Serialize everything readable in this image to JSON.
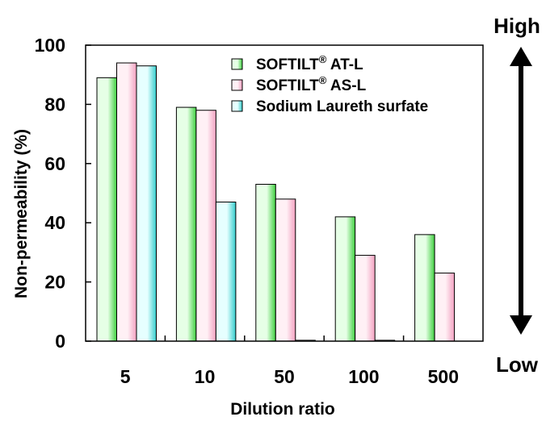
{
  "chart_data": {
    "type": "bar",
    "categories": [
      "5",
      "10",
      "50",
      "100",
      "500"
    ],
    "series": [
      {
        "name": "SOFTILT® AT-L",
        "brand": "SOFTILT",
        "mark": "®",
        "suffix": " AT-L",
        "values": [
          89,
          79,
          53,
          42,
          36
        ],
        "color_light": "#e6ffe6",
        "color_dark": "#3fcf3f"
      },
      {
        "name": "SOFTILT® AS-L",
        "brand": "SOFTILT",
        "mark": "®",
        "suffix": " AS-L",
        "values": [
          94,
          78,
          48,
          29,
          23
        ],
        "color_light": "#fff0f5",
        "color_dark": "#f2a0c0"
      },
      {
        "name": "Sodium Laureth surfate",
        "brand": "Sodium Laureth surfate",
        "mark": "",
        "suffix": "",
        "values": [
          93,
          47,
          0.3,
          0.3,
          null
        ],
        "color_light": "#e6ffff",
        "color_dark": "#33cccc"
      }
    ],
    "title": "",
    "xlabel": "Dilution ratio",
    "ylabel": "Non-permeability (%)",
    "ylim": [
      0,
      100
    ],
    "yticks": [
      0,
      20,
      40,
      60,
      80,
      100
    ],
    "grid": false,
    "legend_position": "top-right",
    "annotation": {
      "high": "High",
      "low": "Low"
    }
  }
}
